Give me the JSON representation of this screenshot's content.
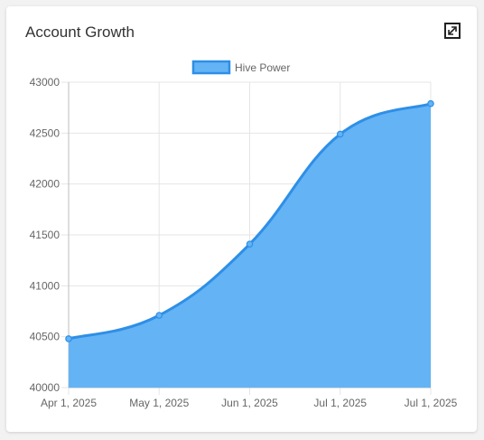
{
  "card": {
    "title": "Account Growth"
  },
  "colors": {
    "fill": "#63b3f5",
    "line": "#2e8fe6",
    "grid": "#e5e5e5",
    "axis": "#bdbdbd"
  },
  "chart_data": {
    "type": "area",
    "title": "",
    "xlabel": "",
    "ylabel": "",
    "ylim": [
      40000,
      43000
    ],
    "yticks": [
      40000,
      40500,
      41000,
      41500,
      42000,
      42500,
      43000
    ],
    "x_tick_labels": [
      "Apr 1, 2025",
      "May 1, 2025",
      "Jun 1, 2025",
      "Jul 1, 2025",
      "Jul 1, 2025"
    ],
    "grid": true,
    "legend_position": "top",
    "series": [
      {
        "name": "Hive Power",
        "points": [
          {
            "x": "Apr 1, 2025",
            "y": 40480
          },
          {
            "x": "May 1, 2025",
            "y": 40710
          },
          {
            "x": "Jun 1, 2025",
            "y": 41410
          },
          {
            "x": "Jul 1, 2025",
            "y": 42490
          },
          {
            "x": "Jul 1, 2025",
            "y": 42790
          }
        ]
      }
    ]
  }
}
